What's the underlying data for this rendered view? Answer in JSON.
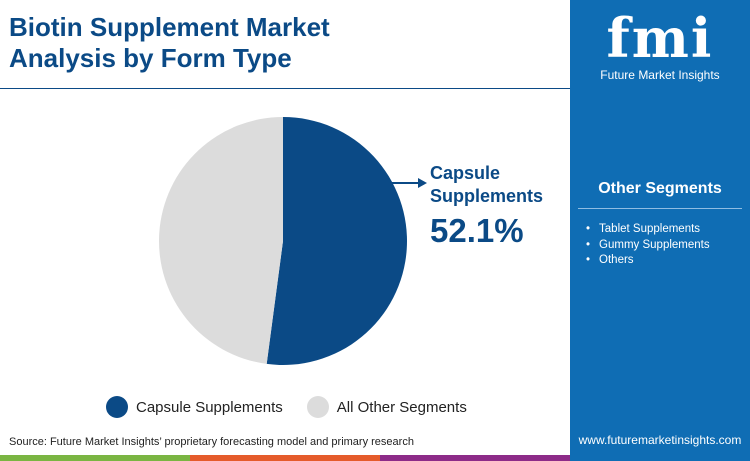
{
  "title": "Biotin Supplement Market Analysis by Form Type",
  "brand": {
    "logo_text": "fmi",
    "name": "Future Market Insights",
    "url": "www.futuremarketinsights.com"
  },
  "other_segments": {
    "title": "Other Segments",
    "items": [
      "Tablet Supplements",
      "Gummy Supplements",
      "Others"
    ]
  },
  "source": "Source: Future Market Insights’ proprietary forecasting model and primary research",
  "colors": {
    "primary": "#0b4a86",
    "other": "#dcdcdc",
    "panel": "#0f6db4",
    "bars": [
      "#7ab542",
      "#e55b2b",
      "#8d2b88"
    ]
  },
  "chart_data": {
    "type": "pie",
    "categories": [
      "Capsule Supplements",
      "All Other Segments"
    ],
    "values": [
      52.1,
      47.9
    ],
    "callout": {
      "label": "Capsule Supplements",
      "value": "52.1%"
    },
    "legend": "bottom"
  }
}
